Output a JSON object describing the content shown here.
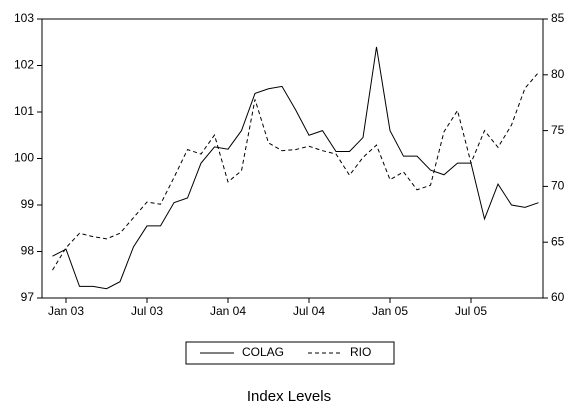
{
  "chart_data": {
    "type": "line",
    "title": "Index Levels",
    "categories": [
      null,
      "Jan 03",
      null,
      null,
      null,
      null,
      null,
      "Jul 03",
      null,
      null,
      null,
      null,
      null,
      "Jan 04",
      null,
      null,
      null,
      null,
      null,
      "Jul 04",
      null,
      null,
      null,
      null,
      null,
      "Jan 05",
      null,
      null,
      null,
      null,
      null,
      "Jul 05",
      null,
      null,
      null,
      null,
      null
    ],
    "series": [
      {
        "name": "COLAG",
        "color": "#000000",
        "dash": "solid",
        "axis": "y",
        "values": [
          97.9,
          98.05,
          97.25,
          97.25,
          97.2,
          97.35,
          98.1,
          98.55,
          98.55,
          99.05,
          99.15,
          99.9,
          100.25,
          100.2,
          100.6,
          101.4,
          101.5,
          101.55,
          101.05,
          100.5,
          100.6,
          100.15,
          100.15,
          100.45,
          102.4,
          100.6,
          100.05,
          100.05,
          99.75,
          99.65,
          99.9,
          99.9,
          98.7,
          99.45,
          99.0,
          98.95,
          99.05
        ]
      },
      {
        "name": "RIO",
        "color": "#000000",
        "dash": "dashed",
        "axis": "y2",
        "values": [
          62.5,
          64.5,
          65.8,
          65.5,
          65.3,
          65.8,
          67.2,
          68.6,
          68.4,
          70.8,
          73.3,
          72.9,
          74.6,
          70.4,
          71.4,
          77.8,
          73.9,
          73.2,
          73.3,
          73.6,
          73.2,
          72.9,
          71.0,
          72.6,
          73.7,
          70.6,
          71.3,
          69.7,
          70.1,
          74.9,
          76.8,
          72.1,
          75.0,
          73.5,
          75.5,
          78.8,
          80.2
        ]
      }
    ],
    "ylim": [
      97,
      103
    ],
    "yticks": [
      97,
      98,
      99,
      100,
      101,
      102,
      103
    ],
    "y2lim": [
      60,
      85
    ],
    "y2ticks": [
      60,
      65,
      70,
      75,
      80,
      85
    ]
  }
}
